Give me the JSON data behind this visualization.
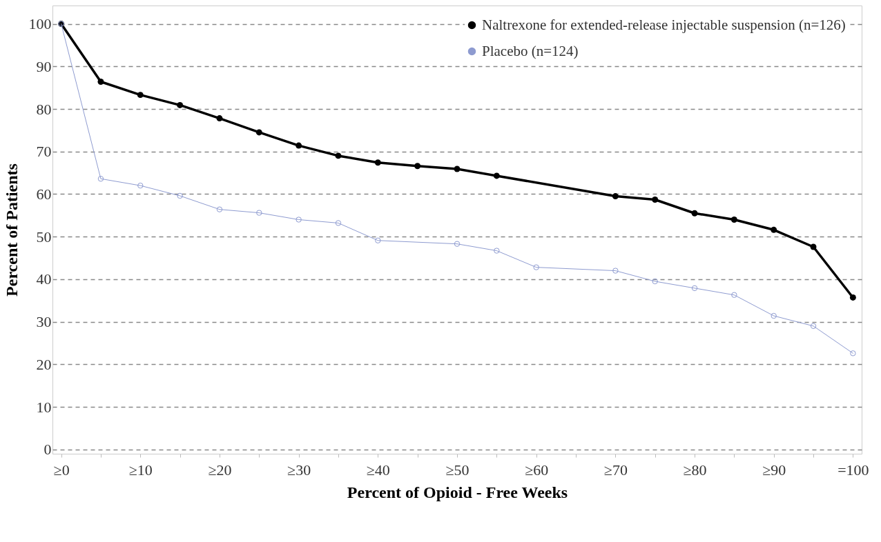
{
  "chart_data": {
    "type": "line",
    "xlabel": "Percent of Opioid - Free Weeks",
    "ylabel": "Percent of Patients",
    "categories": [
      "≥0",
      null,
      "≥10",
      null,
      "≥20",
      null,
      "≥30",
      null,
      "≥40",
      null,
      "≥50",
      null,
      "≥60",
      null,
      "≥70",
      null,
      "≥80",
      null,
      "≥90",
      null,
      "=100"
    ],
    "series": [
      {
        "name": "Naltrexone for extended-release injectable suspension  (n=126)",
        "color": "#000000",
        "values": [
          100,
          86.4,
          83.3,
          80.9,
          77.8,
          74.5,
          71.4,
          69.0,
          67.4,
          66.6,
          65.9,
          64.3,
          null,
          null,
          59.5,
          58.7,
          55.5,
          54.0,
          51.6,
          47.6,
          35.7
        ]
      },
      {
        "name": "Placebo (n=124)",
        "color": "#8e9bd0",
        "values": [
          100,
          63.6,
          62.0,
          59.6,
          56.4,
          55.6,
          54.0,
          53.2,
          49.1,
          null,
          48.3,
          46.7,
          42.8,
          null,
          42.0,
          39.5,
          37.9,
          36.3,
          31.4,
          29.0,
          22.6
        ]
      }
    ],
    "ylim": [
      -1,
      104.3
    ],
    "yticks": [
      0,
      10,
      20,
      30,
      40,
      50,
      60,
      70,
      80,
      90,
      100
    ],
    "grid": "y",
    "legend": "top right",
    "marker": "circle",
    "line_style": "solid"
  }
}
